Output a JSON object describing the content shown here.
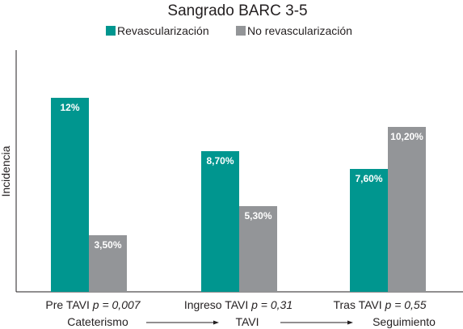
{
  "chart_data": {
    "type": "bar",
    "title": "Sangrado BARC 3-5",
    "ylabel": "Incidencia",
    "xlabel": "",
    "ylim": [
      0,
      15
    ],
    "grid": false,
    "legend_position": "top",
    "categories": [
      {
        "name": "Pre TAVI",
        "p_label": "p = 0,007"
      },
      {
        "name": "Ingreso TAVI",
        "p_label": "p = 0,31"
      },
      {
        "name": "Tras TAVI",
        "p_label": "p = 0,55"
      }
    ],
    "series": [
      {
        "name": "Revascularización",
        "color": "#00968f",
        "values": [
          12,
          8.7,
          7.6
        ],
        "labels": [
          "12%",
          "8,70%",
          "7,60%"
        ]
      },
      {
        "name": "No revascularización",
        "color": "#939598",
        "values": [
          3.5,
          5.3,
          10.2
        ],
        "labels": [
          "3,50%",
          "5,30%",
          "10,20%"
        ]
      }
    ],
    "timeline": [
      "Cateterismo",
      "TAVI",
      "Seguimiento"
    ]
  }
}
